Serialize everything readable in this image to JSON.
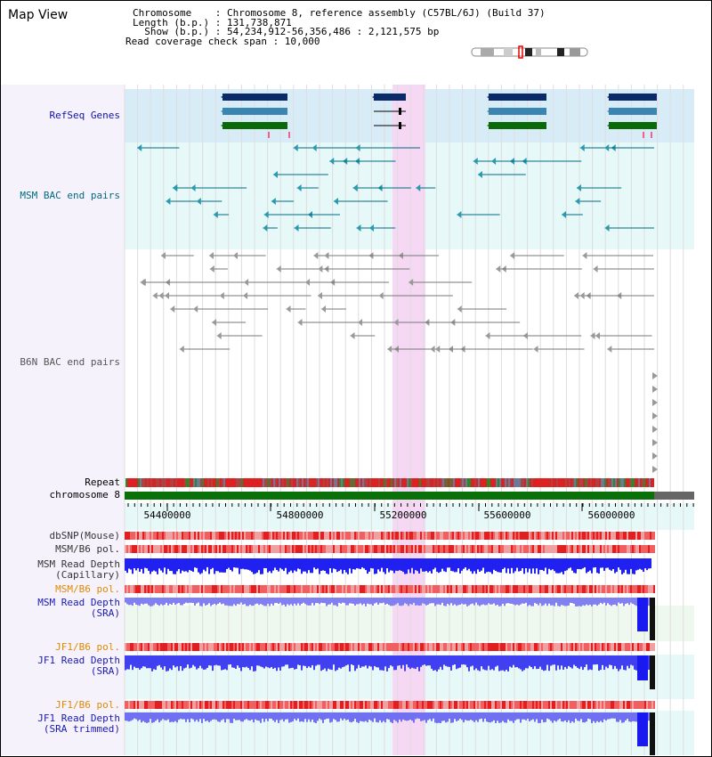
{
  "view_title": "Map View",
  "info": {
    "chromosome_line": "Chromosome    : Chromosome 8, reference assembly (C57BL/6J) (Build 37)",
    "length_line": "Length (b.p.) : 131,738,871",
    "show_line": "  Show (b.p.) : 54,234,912-56,356,486 : 2,121,575 bp",
    "coverage_line": "Read coverage check span : 10,000"
  },
  "tracks": {
    "refseq": "RefSeq Genes",
    "msm_bac": "MSM BAC end pairs",
    "b6n_bac": "B6N BAC end pairs",
    "repeat": "Repeat",
    "chromosome": "chromosome 8",
    "dbsnp": "dbSNP(Mouse)",
    "msm_b6_pol_1": "MSM/B6 pol.",
    "msm_read_depth_cap_1": "MSM Read Depth",
    "msm_read_depth_cap_2": "(Capillary)",
    "msm_b6_pol_2": "MSM/B6 pol.",
    "msm_read_depth_sra_1": "MSM Read Depth",
    "msm_read_depth_sra_2": "(SRA)",
    "jf1_b6_pol_1": "JF1/B6 pol.",
    "jf1_read_depth_sra_1": "JF1 Read Depth",
    "jf1_read_depth_sra_2": "(SRA)",
    "jf1_b6_pol_2": "JF1/B6 pol.",
    "jf1_read_depth_trim_1": "JF1 Read Depth",
    "jf1_read_depth_trim_2": "(SRA trimmed)"
  },
  "axis_ticks": [
    "54400000",
    "54800000",
    "55200000",
    "55600000",
    "56000000"
  ],
  "colors": {
    "refseq_label": "#1010b0",
    "msm_label": "#006a80",
    "b6n_label": "#555555",
    "orange_label": "#e08a00",
    "blue_label": "#1a1ab0",
    "highlight": "#f6d8f4",
    "refseq_bg": "#d8ecf8",
    "msm_bg": "#e6f8f8",
    "chromosome_green": "#0a700a",
    "depth_blue": "#2020f0"
  }
}
